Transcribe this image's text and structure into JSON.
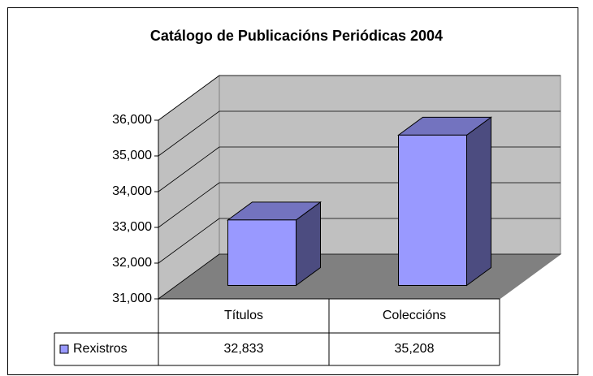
{
  "chart_data": {
    "type": "bar3d",
    "title": "Catálogo de Publicacións Periódicas 2004",
    "categories": [
      "Títulos",
      "Coleccións"
    ],
    "series": [
      {
        "name": "Rexistros",
        "color": "#9999ff",
        "values": [
          32833,
          35208
        ],
        "value_labels": [
          "32,833",
          "35,208"
        ]
      }
    ],
    "ylim": [
      31000,
      36000
    ],
    "yticks": [
      {
        "value": 31000,
        "label": "31,000"
      },
      {
        "value": 32000,
        "label": "32,000"
      },
      {
        "value": 33000,
        "label": "33,000"
      },
      {
        "value": 34000,
        "label": "34,000"
      },
      {
        "value": 35000,
        "label": "35,000"
      },
      {
        "value": 36000,
        "label": "36,000"
      }
    ],
    "grid": true,
    "data_table": true
  }
}
